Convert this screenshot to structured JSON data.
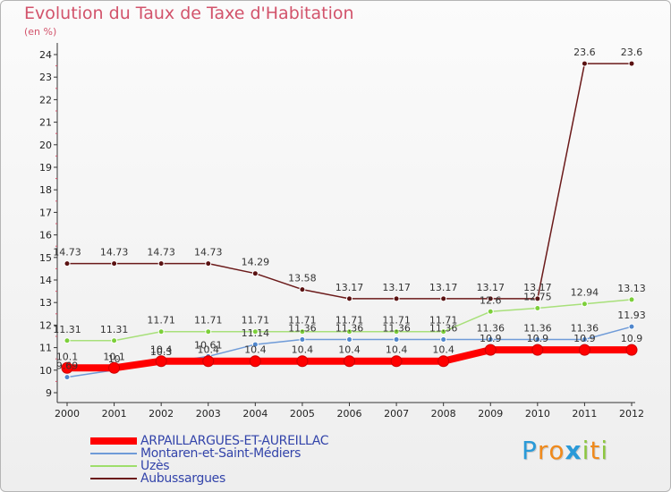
{
  "title": "Evolution du Taux de Taxe d'Habitation",
  "unit": "(en %)",
  "logo": {
    "letters": [
      {
        "ch": "P",
        "color": "#2a9ad8"
      },
      {
        "ch": "r",
        "color": "#f08a1c"
      },
      {
        "ch": "o",
        "color": "#f08a1c"
      },
      {
        "ch": "x",
        "color": "#2a9ad8"
      },
      {
        "ch": "i",
        "color": "#8cc63f"
      },
      {
        "ch": "t",
        "color": "#f08a1c"
      },
      {
        "ch": "i",
        "color": "#8cc63f"
      }
    ]
  },
  "chart_data": {
    "type": "line",
    "x": [
      "2000",
      "2001",
      "2002",
      "2003",
      "2004",
      "2005",
      "2006",
      "2007",
      "2008",
      "2009",
      "2010",
      "2011",
      "2012"
    ],
    "ylim": [
      9,
      24
    ],
    "yticks": [
      9,
      10,
      11,
      12,
      13,
      14,
      15,
      16,
      17,
      18,
      19,
      20,
      21,
      22,
      23,
      24
    ],
    "grid": false,
    "legend_position": "bottom-left",
    "series": [
      {
        "name": "ARPAILLARGUES-ET-AUREILLAC",
        "color": "#ff0000",
        "values": [
          10.1,
          10.1,
          10.4,
          10.4,
          10.4,
          10.4,
          10.4,
          10.4,
          10.4,
          10.9,
          10.9,
          10.9,
          10.9
        ],
        "labels": [
          "10.1",
          "10.1",
          "10.4",
          "10.4",
          "10.4",
          "10.4",
          "10.4",
          "10.4",
          "10.4",
          "10.9",
          "10.9",
          "10.9",
          "10.9"
        ]
      },
      {
        "name": "Montaren-et-Saint-Médiers",
        "color": "#6f9bd8",
        "values": [
          9.69,
          10,
          10.3,
          10.61,
          11.14,
          11.36,
          11.36,
          11.36,
          11.36,
          11.36,
          11.36,
          11.36,
          11.93
        ],
        "labels": [
          "9.69",
          "10",
          "10.3",
          "10.61",
          "11.14",
          "11.36",
          "11.36",
          "11.36",
          "11.36",
          "11.36",
          "11.36",
          "11.36",
          "11.93"
        ]
      },
      {
        "name": "Uzès",
        "color": "#9ede6b",
        "values": [
          11.31,
          11.31,
          11.71,
          11.71,
          11.71,
          11.71,
          11.71,
          11.71,
          11.71,
          12.6,
          12.75,
          12.94,
          13.13
        ],
        "labels": [
          "11.31",
          "11.31",
          "11.71",
          "11.71",
          "11.71",
          "11.71",
          "11.71",
          "11.71",
          "11.71",
          "12.6",
          "12.75",
          "12.94",
          "13.13"
        ]
      },
      {
        "name": "Aubussargues",
        "color": "#6b1a1a",
        "values": [
          14.73,
          14.73,
          14.73,
          14.73,
          14.29,
          13.58,
          13.17,
          13.17,
          13.17,
          13.17,
          13.17,
          23.6,
          23.6
        ],
        "labels": [
          "14.73",
          "14.73",
          "14.73",
          "14.73",
          "14.29",
          "13.58",
          "13.17",
          "13.17",
          "13.17",
          "13.17",
          "13.17",
          "23.6",
          "23.6"
        ]
      }
    ]
  }
}
